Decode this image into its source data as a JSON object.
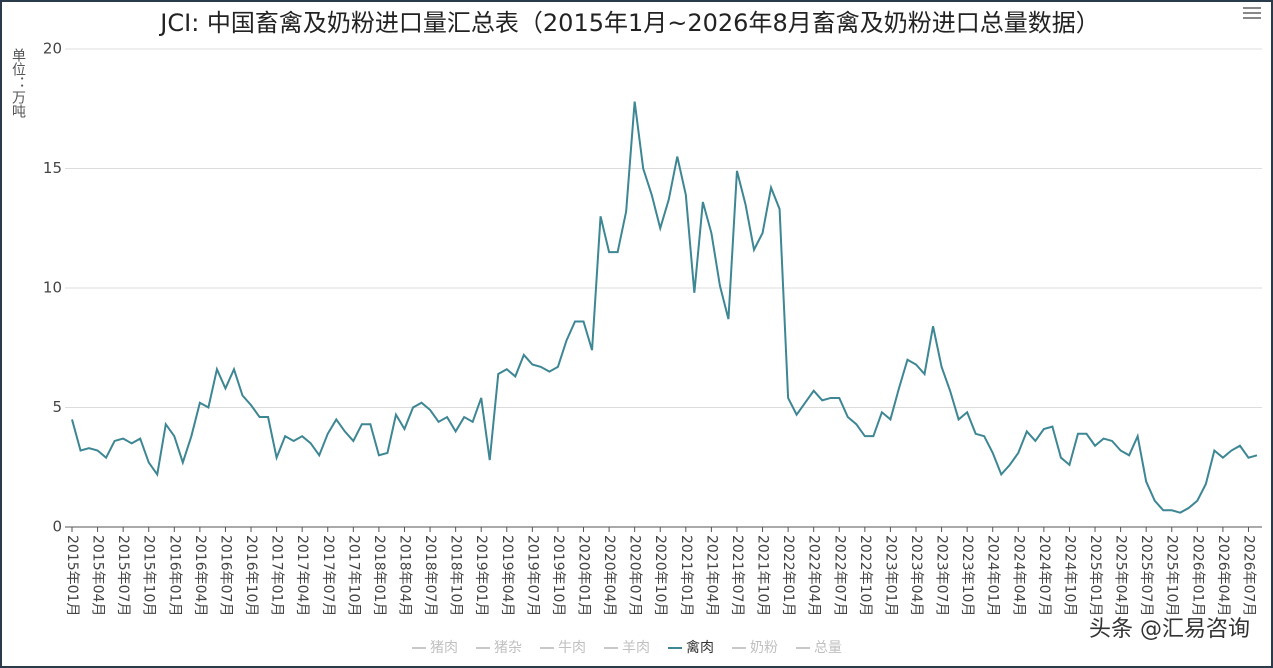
{
  "chart_data": {
    "type": "line",
    "title": "JCI: 中国畜禽及奶粉进口量汇总表（2015年1月~2026年8月畜禽及奶粉进口总量数据）",
    "y_label": "单位：万吨",
    "watermark": "头条 @汇易咨询",
    "categories": [
      "2015年01月",
      null,
      null,
      "2015年04月",
      null,
      null,
      "2015年07月",
      null,
      null,
      "2015年10月",
      null,
      null,
      "2016年01月",
      null,
      null,
      "2016年04月",
      null,
      null,
      "2016年07月",
      null,
      null,
      "2016年10月",
      null,
      null,
      "2017年01月",
      null,
      null,
      "2017年04月",
      null,
      null,
      "2017年07月",
      null,
      null,
      "2017年10月",
      null,
      null,
      "2018年01月",
      null,
      null,
      "2018年04月",
      null,
      null,
      "2018年07月",
      null,
      null,
      "2018年10月",
      null,
      null,
      "2019年01月",
      null,
      null,
      "2019年04月",
      null,
      null,
      "2019年07月",
      null,
      null,
      "2019年10月",
      null,
      null,
      "2020年01月",
      null,
      null,
      "2020年04月",
      null,
      null,
      "2020年07月",
      null,
      null,
      "2020年10月",
      null,
      null,
      "2021年01月",
      null,
      null,
      "2021年04月",
      null,
      null,
      "2021年07月",
      null,
      null,
      "2021年10月",
      null,
      null,
      "2022年01月",
      null,
      null,
      "2022年04月",
      null,
      null,
      "2022年07月",
      null,
      null,
      "2022年10月",
      null,
      null,
      "2023年01月",
      null,
      null,
      "2023年04月",
      null,
      null,
      "2023年07月",
      null,
      null,
      "2023年10月",
      null,
      null,
      "2024年01月",
      null,
      null,
      "2024年04月",
      null,
      null,
      "2024年07月",
      null,
      null,
      "2024年10月",
      null,
      null,
      "2025年01月",
      null,
      null,
      "2025年04月",
      null,
      null,
      "2025年07月",
      null,
      null,
      "2025年10月",
      null,
      null,
      "2026年01月",
      null,
      null,
      "2026年04月",
      null,
      null,
      "2026年07月",
      null
    ],
    "series": [
      {
        "name": "猪肉",
        "visible": false
      },
      {
        "name": "猪杂",
        "visible": false
      },
      {
        "name": "牛肉",
        "visible": false
      },
      {
        "name": "羊肉",
        "visible": false
      },
      {
        "name": "禽肉",
        "visible": true,
        "color": "#3d8694",
        "values": [
          4.5,
          3.2,
          3.3,
          3.2,
          2.9,
          3.6,
          3.7,
          3.5,
          3.7,
          2.7,
          2.2,
          4.3,
          3.8,
          2.7,
          3.8,
          5.2,
          5.0,
          6.6,
          5.8,
          6.6,
          5.5,
          5.1,
          4.6,
          4.6,
          2.9,
          3.8,
          3.6,
          3.8,
          3.5,
          3.0,
          3.9,
          4.5,
          4.0,
          3.6,
          4.3,
          4.3,
          3.0,
          3.1,
          4.7,
          4.1,
          5.0,
          5.2,
          4.9,
          4.4,
          4.6,
          4.0,
          4.6,
          4.4,
          5.4,
          2.8,
          6.4,
          6.6,
          6.3,
          7.2,
          6.8,
          6.7,
          6.5,
          6.7,
          7.8,
          8.6,
          8.6,
          7.4,
          13.0,
          11.5,
          11.5,
          13.2,
          17.8,
          15.0,
          13.9,
          12.5,
          13.7,
          15.5,
          13.9,
          9.8,
          13.6,
          12.3,
          10.1,
          8.7,
          14.9,
          13.5,
          11.6,
          12.3,
          14.2,
          13.3,
          5.4,
          4.7,
          5.2,
          5.7,
          5.3,
          5.4,
          5.4,
          4.6,
          4.3,
          3.8,
          3.8,
          4.8,
          4.5,
          5.8,
          7.0,
          6.8,
          6.4,
          8.4,
          6.7,
          5.7,
          4.5,
          4.8,
          3.9,
          3.8,
          3.1,
          2.2,
          2.6,
          3.1,
          4.0,
          3.6,
          4.1,
          4.2,
          2.9,
          2.6,
          3.9,
          3.9,
          3.4,
          3.7,
          3.6,
          3.2,
          3.0,
          3.8,
          1.9,
          1.1,
          0.7,
          0.7,
          0.6,
          0.8,
          1.1,
          1.8,
          3.2,
          2.9,
          3.2,
          3.4,
          2.9,
          3.0
        ]
      },
      {
        "name": "奶粉",
        "visible": false
      },
      {
        "name": "总量",
        "visible": false
      }
    ],
    "ylim": [
      0,
      20
    ],
    "yticks": [
      0,
      5,
      10,
      15,
      20
    ],
    "grid": true
  }
}
